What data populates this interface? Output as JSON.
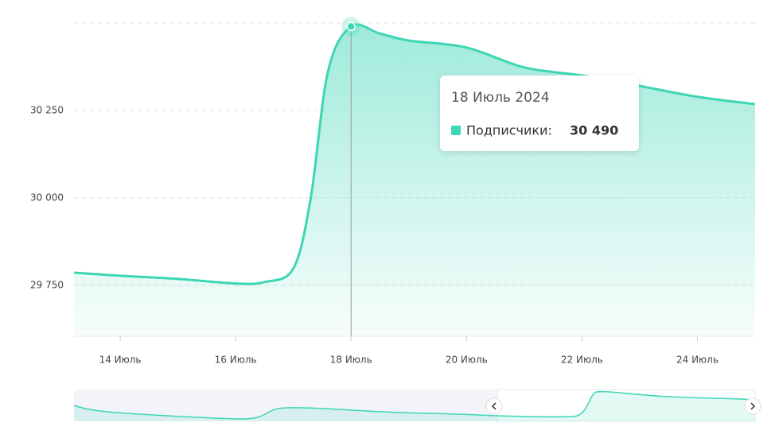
{
  "chart_data": {
    "type": "area",
    "x": [
      13.2,
      14,
      15,
      16,
      16.5,
      17,
      17.3,
      17.6,
      18,
      18.5,
      19,
      20,
      21,
      22,
      23,
      24,
      25
    ],
    "values": [
      29786,
      29777,
      29768,
      29755,
      29759,
      29798,
      29998,
      30361,
      30490,
      30470,
      30450,
      30430,
      30373,
      30350,
      30320,
      30289,
      30268
    ],
    "color": "#3dd6b5",
    "xlim": [
      13.2,
      25
    ],
    "xticks": [
      {
        "value": 14,
        "label": "14 Июль"
      },
      {
        "value": 16,
        "label": "16 Июль"
      },
      {
        "value": 18,
        "label": "18 Июль"
      },
      {
        "value": 20,
        "label": "20 Июль"
      },
      {
        "value": 22,
        "label": "22 Июль"
      },
      {
        "value": 24,
        "label": "24 Июль"
      }
    ],
    "ylim": [
      29604,
      30500
    ],
    "yticks": [
      {
        "value": 29750,
        "label": "29 750"
      },
      {
        "value": 30000,
        "label": "30 000"
      },
      {
        "value": 30250,
        "label": "30 250"
      }
    ],
    "grid": true,
    "tooltip": {
      "title": "18 Июль 2024",
      "label": "Подписчики:",
      "value": "30 490",
      "index": 8
    }
  }
}
